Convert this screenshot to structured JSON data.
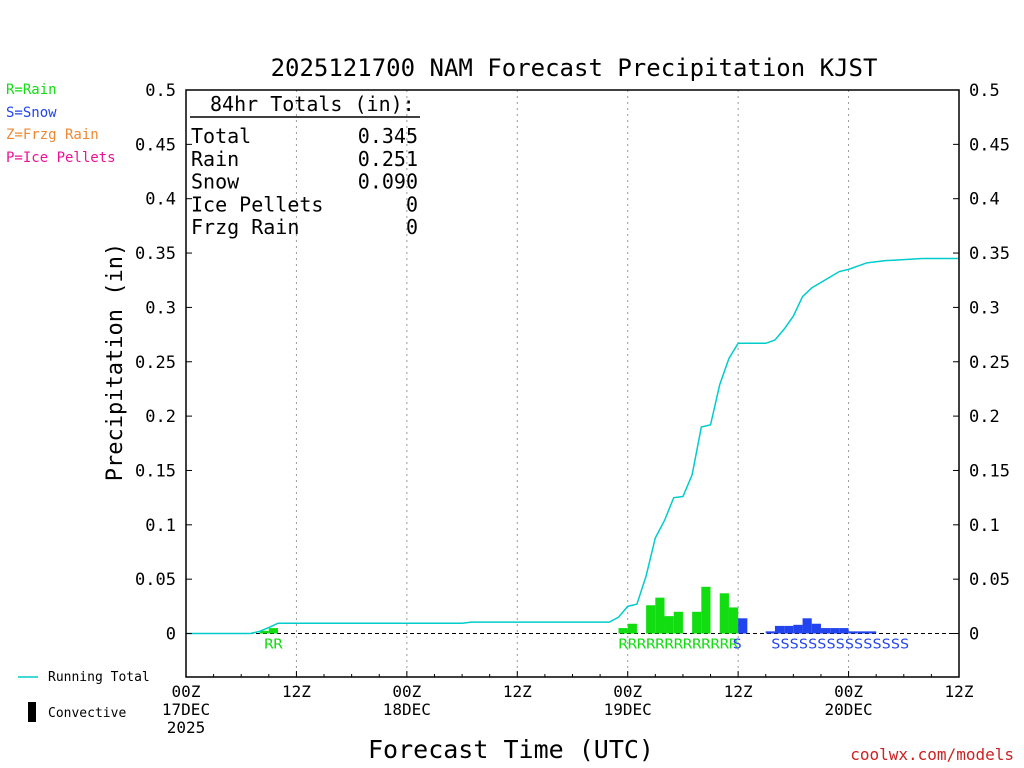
{
  "chart_data": {
    "type": "bar",
    "title": "2025121700 NAM Forecast Precipitation KJST",
    "xlabel": "Forecast Time (UTC)",
    "ylabel": "Precipitation (in)",
    "ylim": [
      -0.04,
      0.5
    ],
    "xlim_hours": [
      0,
      84
    ],
    "y_ticks": [
      0,
      0.05,
      0.1,
      0.15,
      0.2,
      0.25,
      0.3,
      0.35,
      0.4,
      0.45,
      0.5
    ],
    "y_tick_labels": [
      "0",
      "0.05",
      "0.1",
      "0.15",
      "0.2",
      "0.25",
      "0.3",
      "0.35",
      "0.4",
      "0.45",
      "0.5"
    ],
    "x_ticks": [
      {
        "hour": 0,
        "lines": [
          "00Z",
          "17DEC",
          "2025"
        ]
      },
      {
        "hour": 12,
        "lines": [
          "12Z"
        ]
      },
      {
        "hour": 24,
        "lines": [
          "00Z",
          "18DEC"
        ]
      },
      {
        "hour": 36,
        "lines": [
          "12Z"
        ]
      },
      {
        "hour": 48,
        "lines": [
          "00Z",
          "19DEC"
        ]
      },
      {
        "hour": 60,
        "lines": [
          "12Z"
        ]
      },
      {
        "hour": 72,
        "lines": [
          "00Z",
          "20DEC"
        ]
      },
      {
        "hour": 84,
        "lines": [
          "12Z"
        ]
      }
    ],
    "grid_hours": [
      12,
      24,
      36,
      48,
      60,
      72
    ],
    "series": [
      {
        "name": "Rain",
        "color": "#11dd11",
        "bars": [
          {
            "hour": 8.5,
            "value": 0.0025
          },
          {
            "hour": 9.5,
            "value": 0.005
          },
          {
            "hour": 47.5,
            "value": 0.005
          },
          {
            "hour": 48.5,
            "value": 0.009
          },
          {
            "hour": 50.5,
            "value": 0.026
          },
          {
            "hour": 51.5,
            "value": 0.033
          },
          {
            "hour": 52.5,
            "value": 0.016
          },
          {
            "hour": 53.5,
            "value": 0.02
          },
          {
            "hour": 55.5,
            "value": 0.02
          },
          {
            "hour": 56.5,
            "value": 0.043
          },
          {
            "hour": 58.5,
            "value": 0.037
          },
          {
            "hour": 59.5,
            "value": 0.024
          }
        ]
      },
      {
        "name": "Snow",
        "color": "#2244ee",
        "bars": [
          {
            "hour": 60.5,
            "value": 0.014
          },
          {
            "hour": 63.5,
            "value": 0.002
          },
          {
            "hour": 64.5,
            "value": 0.007
          },
          {
            "hour": 65.5,
            "value": 0.007
          },
          {
            "hour": 66.5,
            "value": 0.008
          },
          {
            "hour": 67.5,
            "value": 0.014
          },
          {
            "hour": 68.5,
            "value": 0.009
          },
          {
            "hour": 69.5,
            "value": 0.005
          },
          {
            "hour": 70.5,
            "value": 0.005
          },
          {
            "hour": 71.5,
            "value": 0.005
          },
          {
            "hour": 72.5,
            "value": 0.002
          },
          {
            "hour": 73.5,
            "value": 0.002
          },
          {
            "hour": 74.5,
            "value": 0.002
          }
        ]
      },
      {
        "name": "Running Total",
        "color": "#00cccc",
        "type": "line",
        "points": [
          [
            0,
            0
          ],
          [
            7,
            0
          ],
          [
            8,
            0.002
          ],
          [
            9,
            0.0055
          ],
          [
            10,
            0.0095
          ],
          [
            30,
            0.0095
          ],
          [
            31,
            0.0105
          ],
          [
            46,
            0.0105
          ],
          [
            47,
            0.015
          ],
          [
            48,
            0.025
          ],
          [
            49,
            0.027
          ],
          [
            50,
            0.053
          ],
          [
            51,
            0.088
          ],
          [
            52,
            0.104
          ],
          [
            53,
            0.125
          ],
          [
            54,
            0.126
          ],
          [
            55,
            0.146
          ],
          [
            56,
            0.19
          ],
          [
            57,
            0.192
          ],
          [
            58,
            0.229
          ],
          [
            59,
            0.253
          ],
          [
            60,
            0.267
          ],
          [
            63,
            0.267
          ],
          [
            64,
            0.27
          ],
          [
            65,
            0.28
          ],
          [
            66,
            0.292
          ],
          [
            67,
            0.31
          ],
          [
            68,
            0.318
          ],
          [
            70,
            0.328
          ],
          [
            71,
            0.333
          ],
          [
            72,
            0.335
          ],
          [
            73,
            0.338
          ],
          [
            74,
            0.341
          ],
          [
            76,
            0.343
          ],
          [
            78,
            0.344
          ],
          [
            80,
            0.345
          ],
          [
            84,
            0.345
          ]
        ]
      }
    ],
    "ptype_strips": [
      {
        "start_hour": 9,
        "text": "RR",
        "color": "#11dd11"
      },
      {
        "start_hour": 47.5,
        "text": "RRRRRRRRRRRRR",
        "color": "#11dd11"
      },
      {
        "start_hour": 59.9,
        "text": "S",
        "color": "#2244ee"
      },
      {
        "start_hour": 64.1,
        "text": "SSSSSSSSSSSSSSS",
        "color": "#2244ee"
      }
    ],
    "totals_box": {
      "header": "84hr Totals (in):",
      "rows": [
        {
          "label": "Total",
          "value": "0.345"
        },
        {
          "label": "Rain",
          "value": "0.251"
        },
        {
          "label": "Snow",
          "value": "0.090"
        },
        {
          "label": "Ice Pellets",
          "value": "0"
        },
        {
          "label": "Frzg Rain",
          "value": "0"
        }
      ]
    }
  },
  "ptype_legend": [
    {
      "text": "R=Rain",
      "color": "#11dd11"
    },
    {
      "text": "S=Snow",
      "color": "#2244ee"
    },
    {
      "text": "Z=Frzg Rain",
      "color": "#ee8833"
    },
    {
      "text": "P=Ice Pellets",
      "color": "#ee1199"
    }
  ],
  "bottom_legend": {
    "running_total": "Running Total",
    "convective": "Convective"
  },
  "footer": "coolwx.com/models"
}
